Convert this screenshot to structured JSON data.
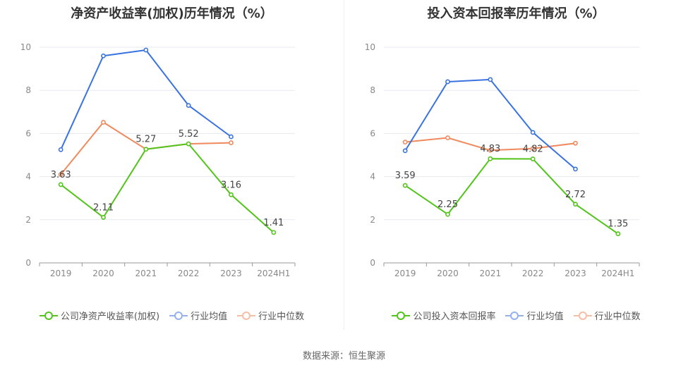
{
  "colors": {
    "company": "#52c41a",
    "avg": "#3a73e0",
    "median": "#f08a5d",
    "grid": "#e6e9f0",
    "axis": "#999999",
    "tick_text": "#888888",
    "label_text": "#444444"
  },
  "source": "数据来源：恒生聚源",
  "chart_data": [
    {
      "type": "line",
      "title": "净资产收益率(加权)历年情况（%）",
      "categories": [
        "2019",
        "2020",
        "2021",
        "2022",
        "2023",
        "2024H1"
      ],
      "ylim": [
        0,
        10
      ],
      "yticks": [
        "0",
        "2",
        "4",
        "6",
        "8",
        "10"
      ],
      "grid": true,
      "legend_position": "bottom",
      "series": [
        {
          "name": "公司净资产收益率(加权)",
          "color_key": "company",
          "values": [
            3.63,
            2.11,
            5.27,
            5.52,
            3.16,
            1.41
          ],
          "labels": [
            "3.63",
            "2.11",
            "5.27",
            "5.52",
            "3.16",
            "1.41"
          ]
        },
        {
          "name": "行业均值",
          "color_key": "avg",
          "values": [
            5.25,
            9.6,
            9.87,
            7.3,
            5.85,
            null
          ]
        },
        {
          "name": "行业中位数",
          "color_key": "median",
          "values": [
            4.1,
            6.52,
            5.27,
            5.52,
            5.57,
            null
          ]
        }
      ]
    },
    {
      "type": "line",
      "title": "投入资本回报率历年情况（%）",
      "categories": [
        "2019",
        "2020",
        "2021",
        "2022",
        "2023",
        "2024H1"
      ],
      "ylim": [
        0,
        10
      ],
      "yticks": [
        "0",
        "2",
        "4",
        "6",
        "8",
        "10"
      ],
      "grid": true,
      "legend_position": "bottom",
      "series": [
        {
          "name": "公司投入资本回报率",
          "color_key": "company",
          "values": [
            3.59,
            2.25,
            4.83,
            4.82,
            2.72,
            1.35
          ],
          "labels": [
            "3.59",
            "2.25",
            "4.83",
            "4.82",
            "2.72",
            "1.35"
          ]
        },
        {
          "name": "行业均值",
          "color_key": "avg",
          "values": [
            5.2,
            8.4,
            8.5,
            6.05,
            4.35,
            null
          ]
        },
        {
          "name": "行业中位数",
          "color_key": "median",
          "values": [
            5.6,
            5.8,
            5.22,
            5.3,
            5.55,
            null
          ]
        }
      ]
    }
  ]
}
